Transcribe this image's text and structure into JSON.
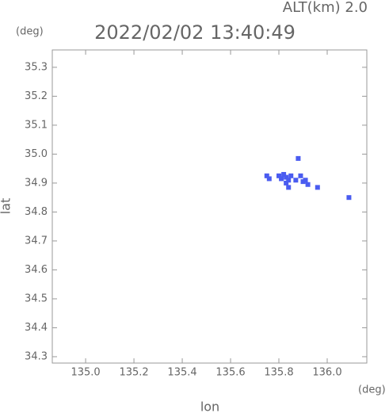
{
  "chart_data": {
    "type": "scatter",
    "title": "2022/02/02 13:40:49",
    "subtitle": "ALT(km) 2.0",
    "x_unit": "(deg)",
    "y_unit": "(deg)",
    "x_label": "lon",
    "y_label": "lat",
    "color": "#4a5cf0",
    "x": [
      135.75,
      135.76,
      135.8,
      135.81,
      135.82,
      135.83,
      135.84,
      135.83,
      135.84,
      135.85,
      135.87,
      135.88,
      135.89,
      135.9,
      135.91,
      135.92,
      135.96,
      136.09
    ],
    "y": [
      34.925,
      34.915,
      34.925,
      34.915,
      34.93,
      34.92,
      34.91,
      34.9,
      34.885,
      34.925,
      34.91,
      34.985,
      34.925,
      34.905,
      34.91,
      34.895,
      34.885,
      34.85
    ],
    "xlim": [
      134.862,
      136.164
    ],
    "ylim": [
      34.278,
      35.36
    ],
    "xticks": [
      {
        "value": 135.0,
        "label": "135.0"
      },
      135.2,
      135.4,
      135.6,
      135.8,
      {
        "value": 136.0,
        "label": "136.0"
      }
    ],
    "yticks": [
      35.3,
      35.2,
      35.1,
      {
        "value": 35.0,
        "label": "35.0"
      },
      34.9,
      34.8,
      34.7,
      34.6,
      34.5,
      34.4,
      34.3
    ]
  }
}
